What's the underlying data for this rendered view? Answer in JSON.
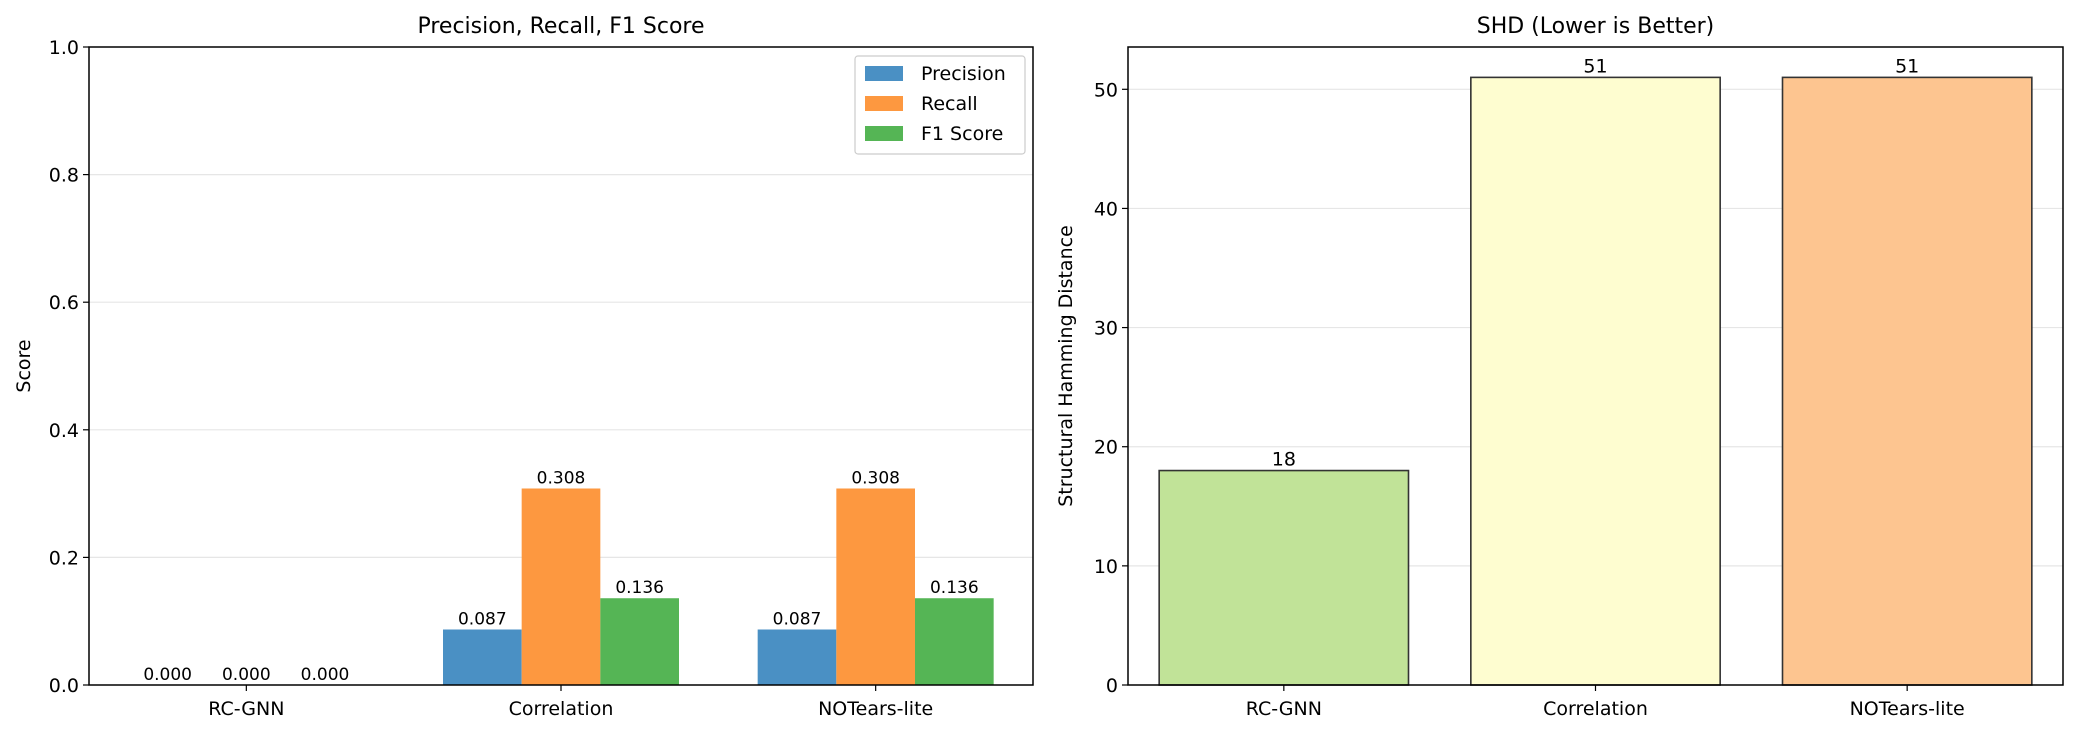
{
  "chart_data": [
    {
      "type": "bar",
      "title": "Precision, Recall, F1 Score",
      "xlabel": "",
      "ylabel": "Score",
      "ylim": [
        0,
        1
      ],
      "yticks": [
        "0.0",
        "0.2",
        "0.4",
        "0.6",
        "0.8",
        "1.0"
      ],
      "grid": "horizontal",
      "legend": "top-right",
      "categories": [
        "RC-GNN",
        "Correlation",
        "NOTears-lite"
      ],
      "series": [
        {
          "name": "Precision",
          "color": "#4a90c4",
          "values": [
            0.0,
            0.087,
            0.087
          ],
          "labels": [
            "0.000",
            "0.087",
            "0.087"
          ]
        },
        {
          "name": "Recall",
          "color": "#fd9840",
          "values": [
            0.0,
            0.308,
            0.308
          ],
          "labels": [
            "0.000",
            "0.308",
            "0.308"
          ]
        },
        {
          "name": "F1 Score",
          "color": "#55b555",
          "values": [
            0.0,
            0.136,
            0.136
          ],
          "labels": [
            "0.000",
            "0.136",
            "0.136"
          ]
        }
      ]
    },
    {
      "type": "bar",
      "title": "SHD (Lower is Better)",
      "xlabel": "",
      "ylabel": "Structural Hamming Distance",
      "ylim": [
        0,
        53.55
      ],
      "yticks": [
        "0",
        "10",
        "20",
        "30",
        "40",
        "50"
      ],
      "grid": "horizontal",
      "categories": [
        "RC-GNN",
        "Correlation",
        "NOTears-lite"
      ],
      "values": [
        18,
        51,
        51
      ],
      "labels": [
        "18",
        "51",
        "51"
      ],
      "colors": [
        "#c1e398",
        "#fefdd0",
        "#fdc590"
      ]
    }
  ]
}
